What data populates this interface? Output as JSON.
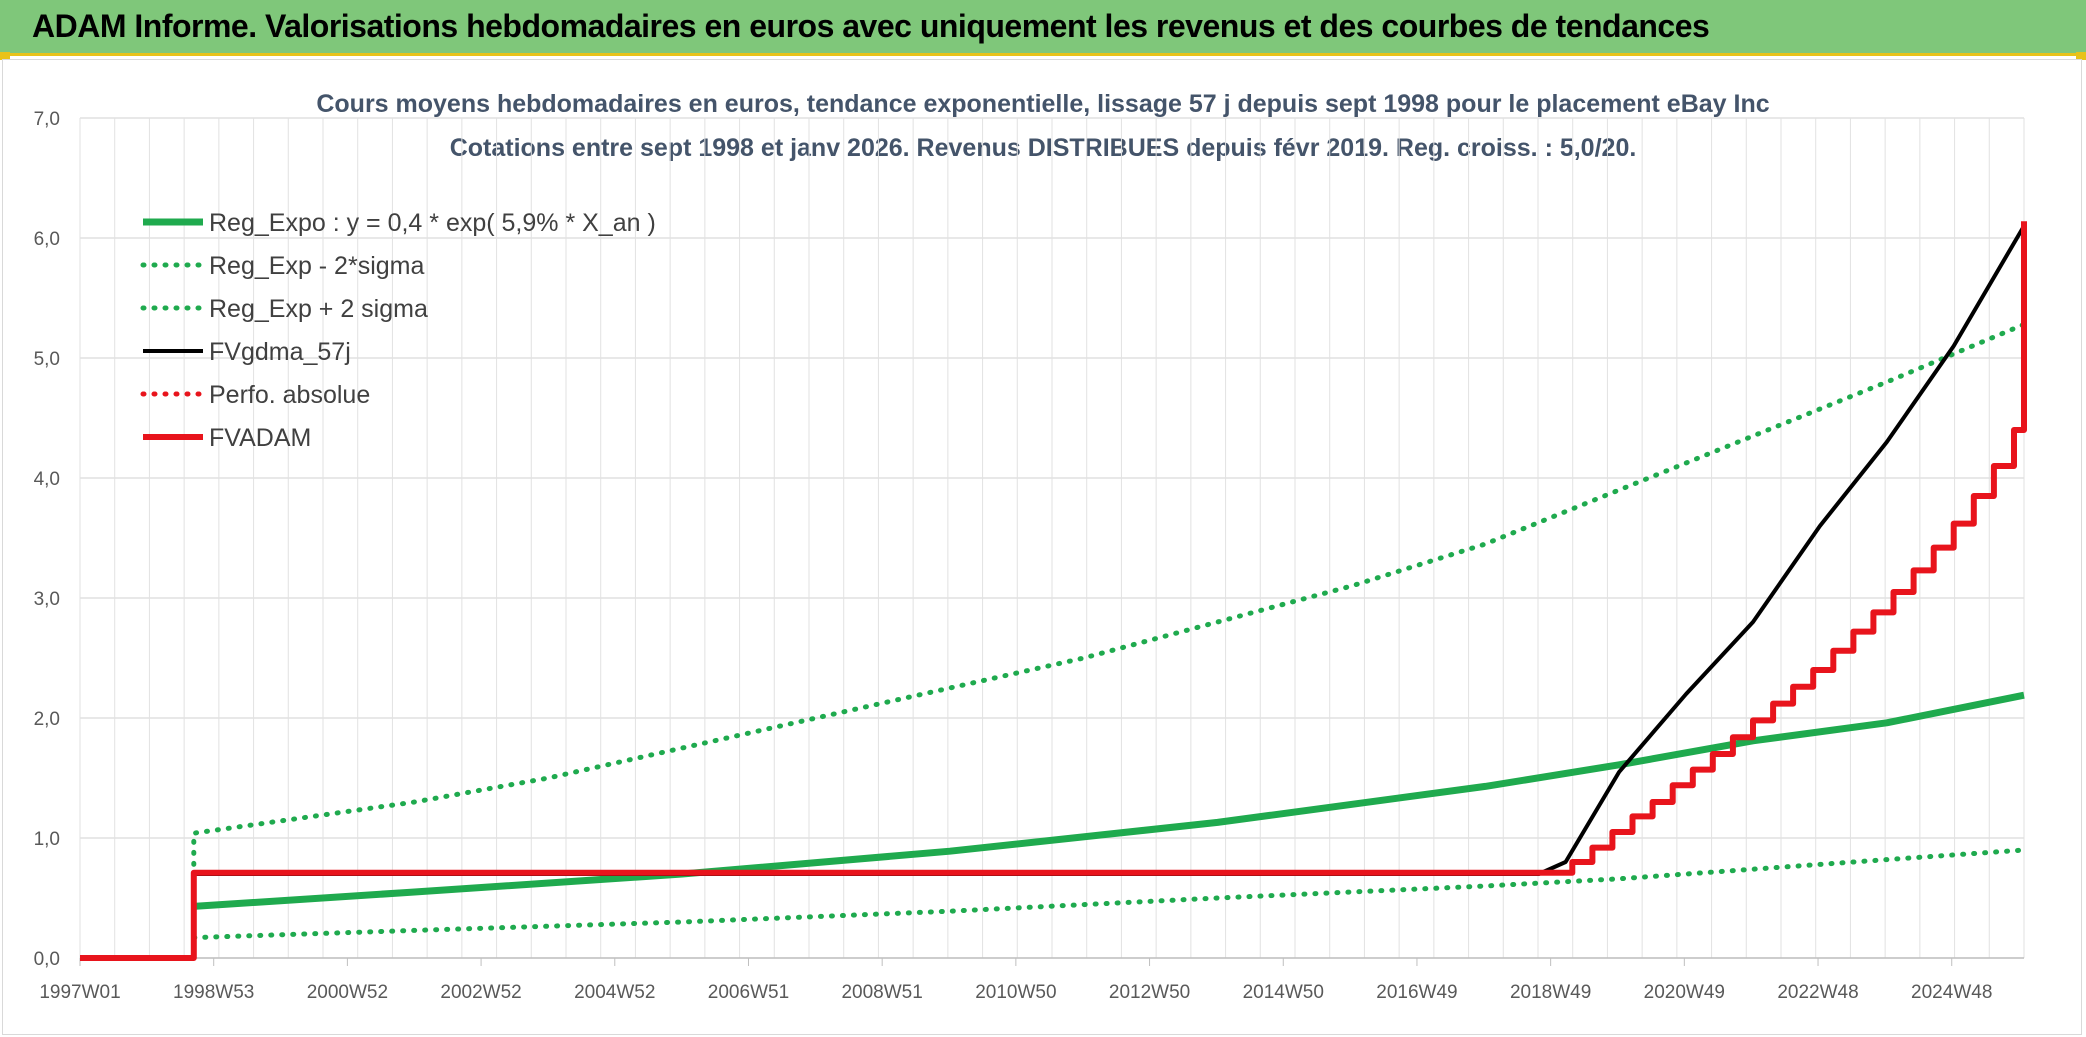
{
  "banner": {
    "title": "ADAM Informe. Valorisations hebdomadaires en euros avec uniquement les revenus et des courbes de tendances"
  },
  "chart_data": {
    "type": "line",
    "title": "Cours moyens hebdomadaires en euros, tendance exponentielle, lissage 57 j depuis sept 1998 pour le placement eBay Inc",
    "subtitle": "Cotations entre sept 1998 et janv 2026. Revenus DISTRIBUES depuis févr 2019. Reg. croiss. : 5,0/20.",
    "x_tick_labels": [
      "1997W01",
      "1998W53",
      "2000W52",
      "2002W52",
      "2004W52",
      "2006W51",
      "2008W51",
      "2010W50",
      "2012W50",
      "2014W50",
      "2016W49",
      "2018W49",
      "2020W49",
      "2022W48",
      "2024W48"
    ],
    "y_tick_labels": [
      "0,0",
      "1,0",
      "2,0",
      "3,0",
      "4,0",
      "5,0",
      "6,0",
      "7,0"
    ],
    "ylim": [
      0,
      7
    ],
    "xlim": [
      1997.0,
      2026.05
    ],
    "grid": true,
    "legend_position": "top-left",
    "series": [
      {
        "name": "Reg_Expo : y = 0,4 * exp( 5,9% *  X_an )",
        "color": "#1faa4e",
        "style": "solid",
        "points": [
          [
            1998.7,
            0.43
          ],
          [
            2002,
            0.55
          ],
          [
            2006,
            0.7
          ],
          [
            2010,
            0.89
          ],
          [
            2014,
            1.13
          ],
          [
            2018,
            1.43
          ],
          [
            2020,
            1.61
          ],
          [
            2022,
            1.81
          ],
          [
            2024,
            1.96
          ],
          [
            2026.05,
            2.19
          ]
        ]
      },
      {
        "name": "Reg_Exp - 2*sigma",
        "color": "#1faa4e",
        "style": "dotted",
        "points": [
          [
            1998.7,
            0.17
          ],
          [
            2002,
            0.23
          ],
          [
            2006,
            0.3
          ],
          [
            2010,
            0.39
          ],
          [
            2014,
            0.5
          ],
          [
            2018,
            0.6
          ],
          [
            2020,
            0.66
          ],
          [
            2022,
            0.74
          ],
          [
            2024,
            0.82
          ],
          [
            2026.05,
            0.9
          ]
        ]
      },
      {
        "name": "Reg_Exp + 2 sigma",
        "color": "#1faa4e",
        "style": "dotted",
        "points": [
          [
            1998.7,
            0.78
          ],
          [
            1998.7,
            1.04
          ],
          [
            2002,
            1.3
          ],
          [
            2004,
            1.5
          ],
          [
            2006,
            1.75
          ],
          [
            2008,
            2.0
          ],
          [
            2010,
            2.25
          ],
          [
            2012,
            2.5
          ],
          [
            2014,
            2.8
          ],
          [
            2016,
            3.1
          ],
          [
            2018,
            3.45
          ],
          [
            2020,
            3.9
          ],
          [
            2022,
            4.35
          ],
          [
            2024,
            4.8
          ],
          [
            2026.05,
            5.28
          ]
        ]
      },
      {
        "name": "FVgdma_57j",
        "color": "#000000",
        "style": "solid",
        "points": [
          [
            1997.0,
            0
          ],
          [
            1998.7,
            0
          ],
          [
            1998.7,
            0.7
          ],
          [
            2018.8,
            0.7
          ],
          [
            2019.2,
            0.8
          ],
          [
            2020,
            1.55
          ],
          [
            2021,
            2.2
          ],
          [
            2022,
            2.8
          ],
          [
            2023,
            3.6
          ],
          [
            2024,
            4.3
          ],
          [
            2025,
            5.1
          ],
          [
            2026.05,
            6.1
          ]
        ]
      },
      {
        "name": "Perfo. absolue",
        "color": "#e8141c",
        "style": "dotted",
        "points": []
      },
      {
        "name": "FVADAM",
        "color": "#e8141c",
        "style": "steps",
        "points": [
          [
            1997.0,
            0
          ],
          [
            1998.7,
            0
          ],
          [
            1998.7,
            0.71
          ],
          [
            2019.1,
            0.71
          ],
          [
            2019.3,
            0.8
          ],
          [
            2019.6,
            0.92
          ],
          [
            2019.9,
            1.05
          ],
          [
            2020.2,
            1.18
          ],
          [
            2020.5,
            1.3
          ],
          [
            2020.8,
            1.44
          ],
          [
            2021.1,
            1.57
          ],
          [
            2021.4,
            1.7
          ],
          [
            2021.7,
            1.84
          ],
          [
            2022.0,
            1.98
          ],
          [
            2022.3,
            2.12
          ],
          [
            2022.6,
            2.26
          ],
          [
            2022.9,
            2.4
          ],
          [
            2023.2,
            2.56
          ],
          [
            2023.5,
            2.72
          ],
          [
            2023.8,
            2.88
          ],
          [
            2024.1,
            3.05
          ],
          [
            2024.4,
            3.23
          ],
          [
            2024.7,
            3.42
          ],
          [
            2025.0,
            3.62
          ],
          [
            2025.3,
            3.85
          ],
          [
            2025.6,
            4.1
          ],
          [
            2025.9,
            4.4
          ],
          [
            2026.05,
            6.14
          ]
        ]
      }
    ]
  }
}
